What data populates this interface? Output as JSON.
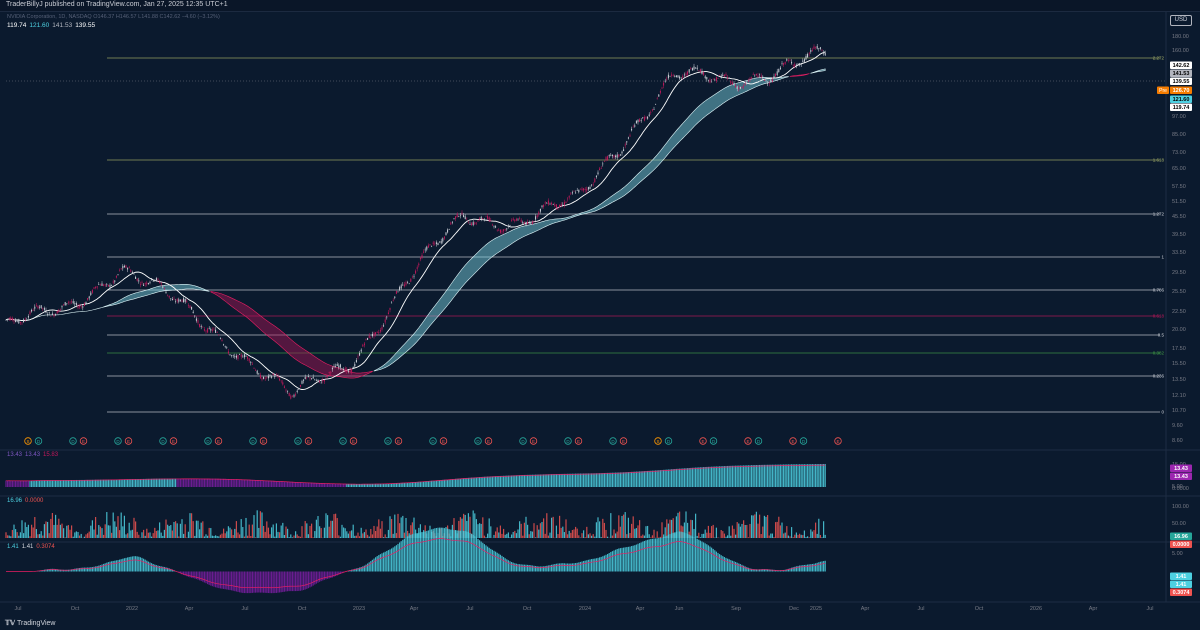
{
  "header": {
    "published_by": "TraderBillyJ published on TradingView.com, Jan 27, 2025 12:35 UTC+1"
  },
  "symbol": {
    "line": "NVIDIA Corporation, 1D, NASDAQ  O146.37  H146.57  L141.88  C142.62  −4.60 (−3.12%)",
    "ma_values": [
      {
        "text": "119.74",
        "color": "#ffffff"
      },
      {
        "text": "121.60",
        "color": "#4dd0e1"
      },
      {
        "text": "141.53",
        "color": "#b2b5be"
      },
      {
        "text": "139.55",
        "color": "#ffffff"
      }
    ]
  },
  "currency": "USD",
  "price_axis": {
    "ticks": [
      "180.00",
      "160.00",
      "142.62",
      "141.53",
      "139.55",
      "126.70",
      "121.60",
      "119.74",
      "97.00",
      "85.00",
      "73.00",
      "65.00",
      "57.50",
      "51.50",
      "45.50",
      "39.50",
      "33.50",
      "29.50",
      "25.50",
      "22.50",
      "20.00",
      "17.50",
      "15.50",
      "13.50",
      "12.10",
      "10.70",
      "9.60",
      "8.60"
    ],
    "labels": [
      {
        "text": "142.62",
        "bg": "#ffffff",
        "fg": "#000000"
      },
      {
        "text": "141.53",
        "bg": "#b2b5be",
        "fg": "#000000"
      },
      {
        "text": "139.55",
        "bg": "#ffffff",
        "fg": "#000000"
      },
      {
        "text": "126.70",
        "bg": "#f57c00",
        "fg": "#ffffff",
        "tag": "Pre"
      },
      {
        "text": "121.60",
        "bg": "#4dd0e1",
        "fg": "#000000"
      },
      {
        "text": "119.74",
        "bg": "#ffffff",
        "fg": "#000000"
      }
    ]
  },
  "fib_levels": [
    {
      "label": "2.272",
      "color": "#a8b36a"
    },
    {
      "label": "1.618",
      "color": "#a8b36a"
    },
    {
      "label": "1.272",
      "color": "#d1d4dc"
    },
    {
      "label": "1",
      "color": "#d1d4dc"
    },
    {
      "label": "0.786",
      "color": "#d1d4dc"
    },
    {
      "label": "0.618",
      "color": "#c2185b"
    },
    {
      "label": "0.5",
      "color": "#d1d4dc"
    },
    {
      "label": "0.382",
      "color": "#43a047"
    },
    {
      "label": "0.236",
      "color": "#d1d4dc"
    },
    {
      "label": "0",
      "color": "#d1d4dc"
    }
  ],
  "events": [
    "S",
    "D",
    "D",
    "E",
    "D",
    "E",
    "D",
    "E",
    "D",
    "E",
    "D",
    "E",
    "D",
    "E",
    "D",
    "E",
    "D",
    "E",
    "D",
    "E",
    "D",
    "E",
    "D",
    "E",
    "D",
    "E",
    "D",
    "E",
    "S",
    "D",
    "E",
    "D",
    "E",
    "D",
    "E",
    "D",
    "E"
  ],
  "panes": [
    {
      "legend": [
        {
          "text": "13.43",
          "color": "#7e57c2"
        },
        {
          "text": "13.43",
          "color": "#7e57c2"
        },
        {
          "text": "15.83",
          "color": "#c2185b"
        }
      ],
      "axis": [
        "15.00",
        "10.00",
        "5.00",
        "0.0000"
      ],
      "labels": [
        {
          "text": "13.43",
          "bg": "#9c27b0"
        },
        {
          "text": "13.43",
          "bg": "#9c27b0"
        }
      ]
    },
    {
      "legend": [
        {
          "text": "16.96",
          "color": "#4dd0e1"
        },
        {
          "text": "0.0000",
          "color": "#ef5350"
        }
      ],
      "axis": [
        "100.00",
        "50.00"
      ],
      "labels": [
        {
          "text": "16.96",
          "bg": "#26a69a"
        },
        {
          "text": "0.0000",
          "bg": "#ef5350"
        }
      ]
    },
    {
      "legend": [
        {
          "text": "1.41",
          "color": "#4dd0e1"
        },
        {
          "text": "1.41",
          "color": "#d1d4dc"
        },
        {
          "text": "0.3074",
          "color": "#ef5350"
        }
      ],
      "axis": [
        "5.00",
        "−5.00"
      ],
      "labels": [
        {
          "text": "1.41",
          "bg": "#4dd0e1"
        },
        {
          "text": "1.41",
          "bg": "#4dd0e1"
        },
        {
          "text": "0.3074",
          "bg": "#ef5350"
        }
      ]
    }
  ],
  "time_axis": [
    "Jul",
    "Oct",
    "2022",
    "Apr",
    "Jul",
    "Oct",
    "2023",
    "Apr",
    "Jul",
    "Oct",
    "2024",
    "Apr",
    "Jun",
    "Sep",
    "Dec",
    "2025",
    "Apr",
    "Jul",
    "Oct",
    "2026",
    "Apr",
    "Jul"
  ],
  "footer": {
    "logo": "TradingView"
  },
  "colors": {
    "background": "#0b1a2e",
    "candle_up": "#d1d4dc",
    "candle_down": "#c2185b",
    "cloud_up": "#80deea",
    "cloud_down": "#ad1457",
    "hist_up": "#4dd0e1",
    "hist_down": "#7b1fa2"
  },
  "chart_data": {
    "type": "line",
    "title": "",
    "x": [
      "2021-07",
      "2021-10",
      "2022-01",
      "2022-04",
      "2022-07",
      "2022-10",
      "2023-01",
      "2023-04",
      "2023-07",
      "2023-10",
      "2024-01",
      "2024-04",
      "2024-06",
      "2024-09",
      "2024-12",
      "2025-01"
    ],
    "series": [
      {
        "values": [
          19.5,
          22,
          30.5,
          23,
          17,
          11.5,
          15,
          27,
          44,
          43,
          49,
          88,
          125,
          116,
          138,
          142.62
        ]
      }
    ],
    "ylim": [
      8.6,
      190
    ],
    "log_scale": true
  }
}
